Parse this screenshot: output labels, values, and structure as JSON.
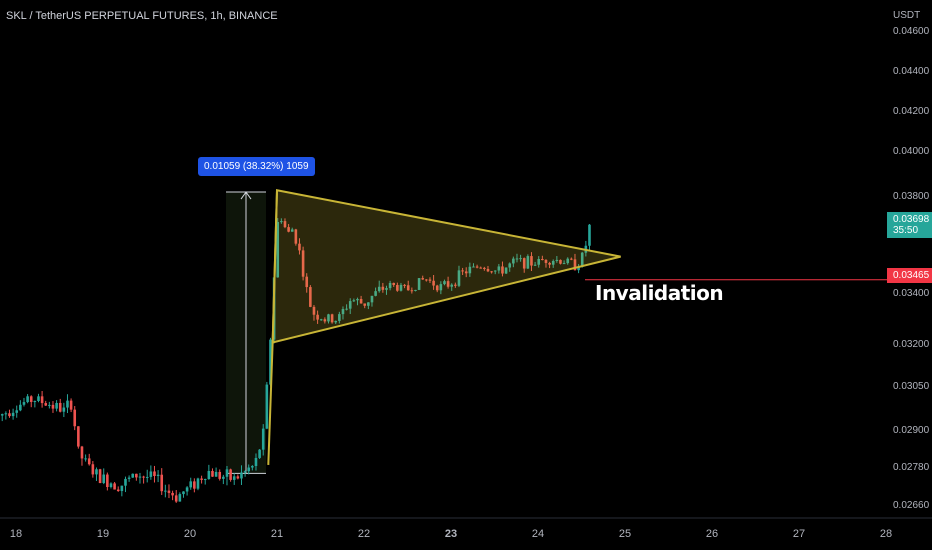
{
  "header": {
    "title": "SKL / TetherUS PERPETUAL FUTURES, 1h, BINANCE",
    "currency": "USDT"
  },
  "colors": {
    "up": "#26a69a",
    "down": "#ef5350",
    "pattern": "#c8b536",
    "invalidation": "#f23645",
    "last_price": "#26a69a",
    "measure": "#1e53e5"
  },
  "price_axis": {
    "ticks": [
      "0.04600",
      "0.04400",
      "0.04200",
      "0.04000",
      "0.03800",
      "0.03400",
      "0.03200",
      "0.03050",
      "0.02900",
      "0.02780",
      "0.02660"
    ]
  },
  "last_price": {
    "value": "0.03698",
    "countdown": "35:50"
  },
  "invalidation_price": {
    "value": "0.03465"
  },
  "measure_label": "0.01059 (38.32%) 1059",
  "annotation": "Invalidation",
  "chart_data": {
    "type": "candlestick",
    "title": "SKL / TetherUS PERPETUAL FUTURES, 1h, BINANCE",
    "x_ticks": [
      "18",
      "19",
      "20",
      "21",
      "22",
      "23",
      "24",
      "25",
      "26",
      "27",
      "28"
    ],
    "y_unit": "USDT",
    "triangle": {
      "apex_day": 24.95,
      "apex_price": 0.0357,
      "upper_start": [
        21.0,
        0.0383
      ],
      "lower_start": [
        20.95,
        0.0321
      ]
    },
    "measure": {
      "from_price": 0.02763,
      "to_price": 0.03822,
      "change": "0.01059 (38.32%) 1059"
    },
    "series": [
      {
        "name": "price",
        "values": [
          [
            17.8,
            0.0295
          ],
          [
            18.0,
            0.02985
          ],
          [
            18.2,
            0.0301
          ],
          [
            18.4,
            0.0299
          ],
          [
            18.55,
            0.0297
          ],
          [
            18.65,
            0.03
          ],
          [
            18.7,
            0.0284
          ],
          [
            18.8,
            0.02795
          ],
          [
            18.95,
            0.0275
          ],
          [
            19.05,
            0.0274
          ],
          [
            19.2,
            0.02725
          ],
          [
            19.4,
            0.0276
          ],
          [
            19.6,
            0.02745
          ],
          [
            19.75,
            0.02705
          ],
          [
            19.85,
            0.0269
          ],
          [
            20.0,
            0.0272
          ],
          [
            20.1,
            0.02745
          ],
          [
            20.2,
            0.0277
          ],
          [
            20.35,
            0.02755
          ],
          [
            20.5,
            0.02745
          ],
          [
            20.6,
            0.0276
          ],
          [
            20.75,
            0.0279
          ],
          [
            20.85,
            0.029
          ],
          [
            20.92,
            0.032
          ],
          [
            20.97,
            0.035
          ],
          [
            21.02,
            0.0376
          ],
          [
            21.07,
            0.037
          ],
          [
            21.13,
            0.0366
          ],
          [
            21.18,
            0.0368
          ],
          [
            21.25,
            0.0361
          ],
          [
            21.32,
            0.0345
          ],
          [
            21.4,
            0.0333
          ],
          [
            21.55,
            0.033
          ],
          [
            21.7,
            0.033
          ],
          [
            21.85,
            0.0338
          ],
          [
            22.0,
            0.0336
          ],
          [
            22.15,
            0.0341
          ],
          [
            22.3,
            0.0344
          ],
          [
            22.5,
            0.0342
          ],
          [
            22.7,
            0.0347
          ],
          [
            22.9,
            0.0343
          ],
          [
            23.0,
            0.0345
          ],
          [
            23.15,
            0.035
          ],
          [
            23.35,
            0.0353
          ],
          [
            23.55,
            0.035
          ],
          [
            23.75,
            0.0355
          ],
          [
            23.95,
            0.0354
          ],
          [
            24.1,
            0.0356
          ],
          [
            24.3,
            0.0355
          ],
          [
            24.45,
            0.0353
          ],
          [
            24.5,
            0.0356
          ],
          [
            24.55,
            0.0362
          ],
          [
            24.6,
            0.03698
          ]
        ]
      }
    ]
  }
}
